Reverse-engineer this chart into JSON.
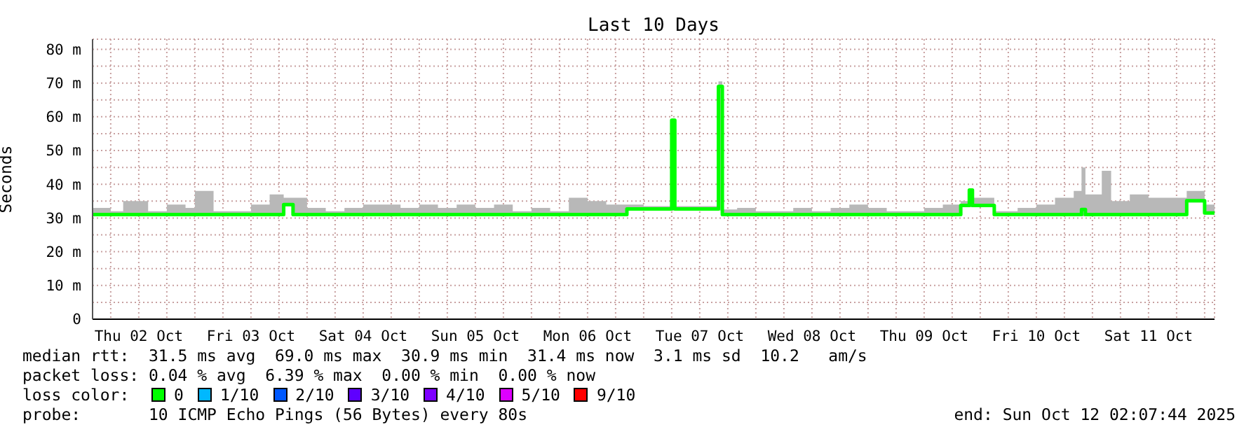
{
  "chart_data": {
    "type": "step",
    "title": "Last 10 Days",
    "ylabel": "Seconds",
    "x": [
      "2025-10-02T02:07",
      "2025-10-02T06:00",
      "2025-10-02T08:40",
      "2025-10-02T14:00",
      "2025-10-02T18:00",
      "2025-10-02T22:00",
      "2025-10-03T00:00",
      "2025-10-03T04:00",
      "2025-10-03T08:00",
      "2025-10-03T12:00",
      "2025-10-03T16:00",
      "2025-10-03T19:00",
      "2025-10-03T21:00",
      "2025-10-04T00:00",
      "2025-10-04T04:00",
      "2025-10-04T08:00",
      "2025-10-04T12:00",
      "2025-10-04T16:00",
      "2025-10-04T20:00",
      "2025-10-05T00:00",
      "2025-10-05T04:00",
      "2025-10-05T08:00",
      "2025-10-05T12:00",
      "2025-10-05T16:00",
      "2025-10-05T20:00",
      "2025-10-06T00:00",
      "2025-10-06T04:00",
      "2025-10-06T08:00",
      "2025-10-06T12:00",
      "2025-10-06T16:00",
      "2025-10-06T20:25",
      "2025-10-07T00:00",
      "2025-10-07T06:00",
      "2025-10-07T06:40",
      "2025-10-07T12:00",
      "2025-10-07T16:00",
      "2025-10-07T16:50",
      "2025-10-07T20:00",
      "2025-10-08T00:00",
      "2025-10-08T04:00",
      "2025-10-08T08:00",
      "2025-10-08T12:00",
      "2025-10-08T16:00",
      "2025-10-08T20:00",
      "2025-10-09T00:00",
      "2025-10-09T04:00",
      "2025-10-09T08:00",
      "2025-10-09T12:00",
      "2025-10-09T16:00",
      "2025-10-09T19:50",
      "2025-10-09T21:40",
      "2025-10-09T22:20",
      "2025-10-10T03:00",
      "2025-10-10T08:00",
      "2025-10-10T12:00",
      "2025-10-10T16:00",
      "2025-10-10T20:00",
      "2025-10-10T21:40",
      "2025-10-10T22:30",
      "2025-10-11T02:00",
      "2025-10-11T04:00",
      "2025-10-11T08:00",
      "2025-10-11T12:00",
      "2025-10-11T16:00",
      "2025-10-11T20:10",
      "2025-10-12T00:00",
      "2025-10-12T02:07"
    ],
    "series": [
      {
        "color": "#00ff00",
        "values": [
          31,
          31,
          31,
          31,
          31,
          31,
          31,
          31,
          31,
          31,
          31,
          34,
          31,
          31,
          31,
          31,
          31,
          31,
          31,
          31,
          31,
          31,
          31,
          31,
          31,
          31,
          31,
          31,
          31,
          31,
          32.7,
          32.7,
          59,
          32.7,
          32.7,
          69,
          31,
          31,
          31,
          31,
          31,
          31,
          31,
          31,
          31,
          31,
          31,
          31,
          31,
          33.7,
          38.3,
          33.7,
          31,
          31,
          31,
          31,
          31,
          32.5,
          31,
          31,
          31,
          31,
          31,
          31,
          35.1,
          31.5,
          31.5
        ],
        "lower": [
          30.5,
          30.5,
          30.5,
          30.5,
          30.5,
          30.5,
          30.5,
          30.5,
          30.5,
          30.5,
          30.5,
          33.5,
          30.5,
          30.5,
          30.5,
          30.5,
          30.5,
          30.5,
          30.5,
          30.5,
          30.5,
          30.5,
          30.5,
          30.5,
          30.5,
          30.5,
          30.5,
          30.5,
          30.5,
          30.5,
          32.2,
          32.2,
          32.2,
          32.2,
          32.2,
          32.2,
          30.5,
          30.5,
          30.5,
          30.5,
          30.5,
          30.5,
          30.5,
          30.5,
          30.5,
          30.5,
          30.5,
          30.5,
          30.5,
          33.2,
          33.2,
          33.2,
          30.5,
          30.5,
          30.5,
          30.5,
          30.5,
          30.5,
          30.5,
          30.5,
          30.5,
          30.5,
          30.5,
          30.5,
          34.6,
          31,
          31
        ],
        "upper": [
          33,
          32,
          35,
          32,
          34,
          33,
          38,
          32,
          32,
          34,
          37,
          36,
          36,
          33,
          32,
          33,
          34,
          34,
          33,
          34,
          33,
          34,
          33,
          34,
          32,
          33,
          32,
          36,
          35,
          34,
          34,
          33.5,
          59.5,
          33.5,
          33.5,
          70.5,
          32.5,
          33,
          32,
          32,
          33,
          32,
          33,
          34,
          33,
          32,
          32,
          33,
          34,
          35,
          38.5,
          36,
          32,
          33,
          34,
          36,
          38,
          45,
          37,
          44,
          35,
          37,
          36,
          36,
          38,
          34,
          34
        ]
      }
    ],
    "xlim": [
      "2025-10-02T02:07",
      "2025-10-12T02:07"
    ],
    "xticks": [
      {
        "value": "2025-10-02T06:00",
        "label": null
      },
      {
        "value": "2025-10-02T12:00",
        "label": "Thu 02 Oct"
      },
      {
        "value": "2025-10-02T18:00",
        "label": null
      },
      {
        "value": "2025-10-03T00:00",
        "label": null
      },
      {
        "value": "2025-10-03T06:00",
        "label": null
      },
      {
        "value": "2025-10-03T12:00",
        "label": "Fri 03 Oct"
      },
      {
        "value": "2025-10-03T18:00",
        "label": null
      },
      {
        "value": "2025-10-04T00:00",
        "label": null
      },
      {
        "value": "2025-10-04T06:00",
        "label": null
      },
      {
        "value": "2025-10-04T12:00",
        "label": "Sat 04 Oct"
      },
      {
        "value": "2025-10-04T18:00",
        "label": null
      },
      {
        "value": "2025-10-05T00:00",
        "label": null
      },
      {
        "value": "2025-10-05T06:00",
        "label": null
      },
      {
        "value": "2025-10-05T12:00",
        "label": "Sun 05 Oct"
      },
      {
        "value": "2025-10-05T18:00",
        "label": null
      },
      {
        "value": "2025-10-06T00:00",
        "label": null
      },
      {
        "value": "2025-10-06T06:00",
        "label": null
      },
      {
        "value": "2025-10-06T12:00",
        "label": "Mon 06 Oct"
      },
      {
        "value": "2025-10-06T18:00",
        "label": null
      },
      {
        "value": "2025-10-07T00:00",
        "label": null
      },
      {
        "value": "2025-10-07T06:00",
        "label": null
      },
      {
        "value": "2025-10-07T12:00",
        "label": "Tue 07 Oct"
      },
      {
        "value": "2025-10-07T18:00",
        "label": null
      },
      {
        "value": "2025-10-08T00:00",
        "label": null
      },
      {
        "value": "2025-10-08T06:00",
        "label": null
      },
      {
        "value": "2025-10-08T12:00",
        "label": "Wed 08 Oct"
      },
      {
        "value": "2025-10-08T18:00",
        "label": null
      },
      {
        "value": "2025-10-09T00:00",
        "label": null
      },
      {
        "value": "2025-10-09T06:00",
        "label": null
      },
      {
        "value": "2025-10-09T12:00",
        "label": "Thu 09 Oct"
      },
      {
        "value": "2025-10-09T18:00",
        "label": null
      },
      {
        "value": "2025-10-10T00:00",
        "label": null
      },
      {
        "value": "2025-10-10T06:00",
        "label": null
      },
      {
        "value": "2025-10-10T12:00",
        "label": "Fri 10 Oct"
      },
      {
        "value": "2025-10-10T18:00",
        "label": null
      },
      {
        "value": "2025-10-11T00:00",
        "label": null
      },
      {
        "value": "2025-10-11T06:00",
        "label": null
      },
      {
        "value": "2025-10-11T12:00",
        "label": "Sat 11 Oct"
      },
      {
        "value": "2025-10-11T18:00",
        "label": null
      },
      {
        "value": "2025-10-12T00:00",
        "label": null
      }
    ],
    "ylim": [
      0,
      83
    ],
    "yticks": [
      0,
      {
        "value": 5,
        "label": null
      },
      {
        "value": 10,
        "label": "10 m"
      },
      {
        "value": 15,
        "label": null
      },
      {
        "value": 20,
        "label": "20 m"
      },
      {
        "value": 25,
        "label": null
      },
      {
        "value": 30,
        "label": "30 m"
      },
      {
        "value": 35,
        "label": null
      },
      {
        "value": 40,
        "label": "40 m"
      },
      {
        "value": 45,
        "label": null
      },
      {
        "value": 50,
        "label": "50 m"
      },
      {
        "value": 55,
        "label": null
      },
      {
        "value": 60,
        "label": "60 m"
      },
      {
        "value": 65,
        "label": null
      },
      {
        "value": 70,
        "label": "70 m"
      },
      {
        "value": 75,
        "label": null
      },
      {
        "value": 80,
        "label": "80 m"
      }
    ],
    "grid": true,
    "annotations": [
      "median rtt:  31.5 ms avg  69.0 ms max  30.9 ms min  31.4 ms now  3.1 ms sd  10.2   am/s",
      "packet loss: 0.04 % avg  6.39 % max  0.00 % min  0.00 % now",
      "loss color:",
      "0",
      "1/10",
      "2/10",
      "3/10",
      "4/10",
      "5/10",
      "9/10",
      "probe:       10 ICMP Echo Pings (56 Bytes) every 80s",
      "end: Sun Oct 12 02:07:44 2025"
    ]
  }
}
